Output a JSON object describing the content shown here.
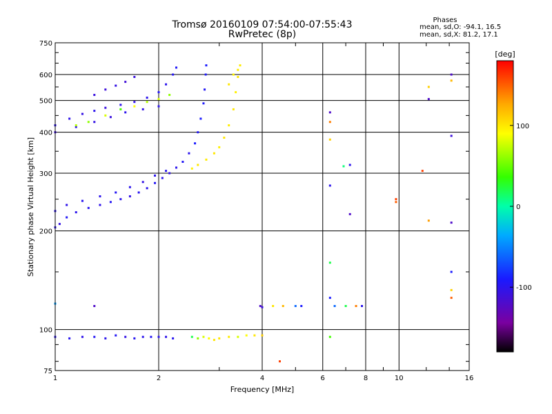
{
  "chart_data": {
    "type": "scatter",
    "title": "Tromsø 20160109 07:54:00-07:55:43",
    "subtitle": "RwPretec (8p)",
    "xlabel": "Frequency [MHz]",
    "ylabel": "Stationary phase Virtual Height [km]",
    "x_scale": "log",
    "y_scale": "log",
    "xlim": [
      1,
      16
    ],
    "ylim": [
      75,
      750
    ],
    "xticks": [
      1,
      2,
      4,
      6,
      8,
      10,
      16
    ],
    "xtick_labels": [
      "1",
      "2",
      "4",
      "6",
      "8",
      "10",
      "16"
    ],
    "x_minor_ticks": [
      3,
      5,
      7,
      9,
      12,
      14
    ],
    "yticks": [
      75,
      100,
      200,
      300,
      400,
      500,
      600,
      750
    ],
    "ytick_labels": [
      "75",
      "100",
      "200",
      "300",
      "400",
      "500",
      "600",
      "750"
    ],
    "y_minor_ticks": [
      80,
      90,
      150,
      250,
      350,
      450,
      550,
      650,
      700
    ],
    "grid": true,
    "stats": {
      "title": "Phases",
      "line_o": "mean, sd,O: -94.1, 16.5",
      "line_x": "mean, sd,X:  81.2, 17.1"
    },
    "colorbar": {
      "label": "[deg]",
      "range": [
        -180,
        180
      ],
      "ticks": [
        -100,
        0,
        100
      ],
      "tick_labels": [
        "-100",
        "0",
        "100"
      ]
    },
    "series": [
      {
        "points": [
          [
            1.0,
            205,
            -100
          ],
          [
            1.03,
            210,
            -105
          ],
          [
            1.08,
            220,
            -95
          ],
          [
            1.15,
            228,
            -100
          ],
          [
            1.25,
            235,
            -98
          ],
          [
            1.35,
            240,
            -102
          ],
          [
            1.45,
            245,
            -96
          ],
          [
            1.55,
            250,
            -100
          ],
          [
            1.65,
            255,
            -104
          ],
          [
            1.75,
            262,
            -98
          ],
          [
            1.85,
            270,
            -100
          ],
          [
            1.95,
            280,
            -96
          ],
          [
            2.05,
            290,
            -100
          ],
          [
            2.15,
            300,
            -104
          ],
          [
            2.25,
            312,
            -100
          ],
          [
            2.35,
            325,
            -95
          ],
          [
            2.45,
            345,
            -100
          ],
          [
            2.55,
            370,
            -90
          ],
          [
            2.6,
            400,
            -95
          ],
          [
            2.65,
            440,
            -90
          ],
          [
            2.7,
            490,
            -92
          ],
          [
            2.72,
            540,
            -95
          ],
          [
            2.74,
            600,
            -92
          ],
          [
            2.75,
            640,
            -90
          ]
        ]
      },
      {
        "points": [
          [
            1.0,
            230,
            -100
          ],
          [
            1.08,
            240,
            -102
          ],
          [
            1.2,
            247,
            -98
          ],
          [
            1.35,
            255,
            -100
          ],
          [
            1.5,
            262,
            -96
          ],
          [
            1.65,
            272,
            -100
          ],
          [
            1.8,
            282,
            -104
          ],
          [
            1.95,
            295,
            -100
          ],
          [
            2.1,
            305,
            -98
          ]
        ]
      },
      {
        "points": [
          [
            1.0,
            420,
            -100
          ],
          [
            1.1,
            440,
            -102
          ],
          [
            1.2,
            455,
            -105
          ],
          [
            1.3,
            465,
            -100
          ],
          [
            1.4,
            475,
            -108
          ],
          [
            1.55,
            485,
            -100
          ],
          [
            1.7,
            495,
            -104
          ],
          [
            1.85,
            510,
            -100
          ],
          [
            2.0,
            530,
            -96
          ],
          [
            2.1,
            560,
            -100
          ],
          [
            2.2,
            600,
            -96
          ],
          [
            2.25,
            630,
            -94
          ]
        ]
      },
      {
        "points": [
          [
            1.0,
            400,
            -110
          ],
          [
            1.15,
            415,
            -100
          ],
          [
            1.3,
            430,
            -105
          ],
          [
            1.45,
            445,
            -108
          ],
          [
            1.6,
            460,
            -100
          ],
          [
            1.8,
            470,
            -104
          ],
          [
            2.0,
            480,
            -100
          ]
        ]
      },
      {
        "points": [
          [
            1.3,
            520,
            -108
          ],
          [
            1.4,
            540,
            -110
          ],
          [
            1.5,
            555,
            -105
          ],
          [
            1.6,
            570,
            -112
          ],
          [
            1.7,
            590,
            -108
          ]
        ]
      },
      {
        "points": [
          [
            1.15,
            420,
            70
          ],
          [
            1.25,
            430,
            60
          ],
          [
            1.4,
            450,
            80
          ],
          [
            1.55,
            470,
            40
          ],
          [
            1.7,
            480,
            90
          ],
          [
            1.85,
            495,
            70
          ],
          [
            2.0,
            505,
            80
          ],
          [
            2.15,
            520,
            60
          ]
        ]
      },
      {
        "points": [
          [
            2.5,
            310,
            95
          ],
          [
            2.6,
            318,
            100
          ],
          [
            2.75,
            330,
            98
          ],
          [
            2.9,
            345,
            100
          ],
          [
            3.0,
            360,
            96
          ],
          [
            3.1,
            385,
            100
          ],
          [
            3.2,
            420,
            98
          ],
          [
            3.3,
            470,
            100
          ],
          [
            3.35,
            530,
            96
          ],
          [
            3.4,
            590,
            100
          ],
          [
            3.45,
            640,
            98
          ]
        ]
      },
      {
        "points": [
          [
            3.2,
            560,
            100
          ],
          [
            3.3,
            600,
            96
          ],
          [
            3.4,
            620,
            98
          ]
        ]
      },
      {
        "points": [
          [
            1.0,
            95,
            -100
          ],
          [
            1.1,
            94,
            -98
          ],
          [
            1.2,
            95,
            -102
          ],
          [
            1.3,
            95,
            -96
          ],
          [
            1.4,
            94,
            -100
          ],
          [
            1.5,
            96,
            -95
          ],
          [
            1.6,
            95,
            -104
          ],
          [
            1.7,
            94,
            -98
          ],
          [
            1.8,
            95,
            -100
          ],
          [
            1.9,
            95,
            -96
          ],
          [
            2.0,
            95,
            -100
          ],
          [
            2.1,
            95,
            -102
          ],
          [
            2.2,
            94,
            -98
          ]
        ]
      },
      {
        "points": [
          [
            2.5,
            95,
            20
          ],
          [
            2.6,
            94,
            60
          ],
          [
            2.7,
            95,
            80
          ],
          [
            2.8,
            94,
            90
          ],
          [
            2.9,
            93,
            100
          ],
          [
            3.0,
            94,
            100
          ],
          [
            3.2,
            95,
            98
          ],
          [
            3.4,
            95,
            80
          ],
          [
            3.6,
            96,
            90
          ],
          [
            3.8,
            96,
            100
          ],
          [
            4.0,
            96,
            110
          ]
        ]
      },
      {
        "points": [
          [
            3.95,
            118,
            -120
          ],
          [
            4.0,
            117,
            -110
          ],
          [
            4.3,
            118,
            100
          ],
          [
            4.6,
            118,
            120
          ],
          [
            5.0,
            118,
            -60
          ],
          [
            5.2,
            118,
            -90
          ],
          [
            6.5,
            118,
            -60
          ],
          [
            7.0,
            118,
            20
          ],
          [
            7.5,
            118,
            140
          ],
          [
            7.8,
            118,
            -100
          ]
        ]
      },
      {
        "points": [
          [
            6.3,
            460,
            -120
          ],
          [
            6.3,
            430,
            140
          ],
          [
            6.3,
            380,
            110
          ],
          [
            6.3,
            275,
            -100
          ],
          [
            6.3,
            160,
            20
          ],
          [
            6.3,
            125,
            -90
          ],
          [
            6.3,
            95,
            40
          ],
          [
            6.9,
            315,
            10
          ],
          [
            7.2,
            318,
            -100
          ],
          [
            7.2,
            225,
            -120
          ],
          [
            9.8,
            250,
            160
          ],
          [
            9.8,
            245,
            150
          ],
          [
            11.7,
            305,
            160
          ],
          [
            12.2,
            550,
            110
          ],
          [
            12.2,
            505,
            -120
          ],
          [
            12.2,
            215,
            130
          ],
          [
            14.2,
            600,
            -120
          ],
          [
            14.2,
            575,
            120
          ],
          [
            14.2,
            390,
            -110
          ],
          [
            14.2,
            150,
            -90
          ],
          [
            14.2,
            132,
            110
          ],
          [
            14.2,
            125,
            150
          ],
          [
            14.2,
            212,
            -120
          ],
          [
            1.0,
            120,
            -40
          ],
          [
            1.3,
            118,
            -120
          ],
          [
            4.5,
            80,
            160
          ]
        ]
      }
    ]
  }
}
